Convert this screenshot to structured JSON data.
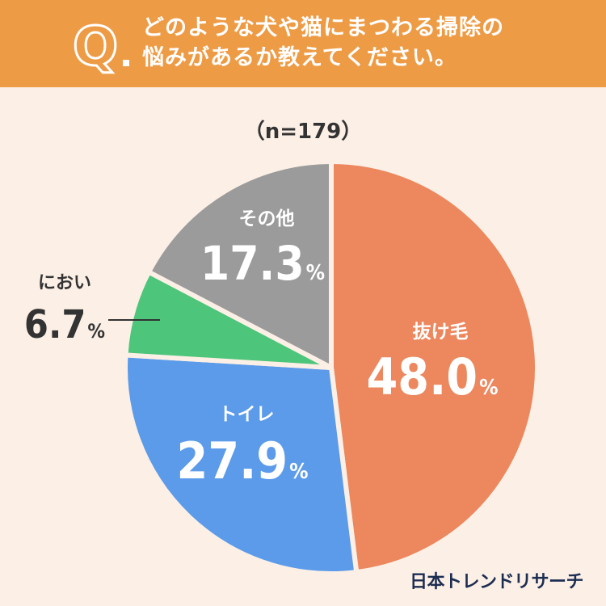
{
  "header": {
    "q_letter": "Q",
    "question_line1": "どのような犬や猫にまつわる掃除の",
    "question_line2": "悩みがあるか教えてください。"
  },
  "sample_size": "（n=179）",
  "brand": "日本トレンドリサーチ",
  "colors": {
    "header_bg": "#EE9B45",
    "background": "#FCF0E6",
    "nuke_ge": "#EC875E",
    "toire": "#5B9BEA",
    "nioi": "#4DC57A",
    "sonota": "#9B9B9B"
  },
  "chart_data": {
    "type": "pie",
    "title": "どのような犬や猫にまつわる掃除の悩みがあるか教えてください。",
    "unit": "%",
    "slices": [
      {
        "label": "抜け毛",
        "value": 48.0,
        "value_text": "48.0",
        "color": "#EC875E"
      },
      {
        "label": "トイレ",
        "value": 27.9,
        "value_text": "27.9",
        "color": "#5B9BEA"
      },
      {
        "label": "におい",
        "value": 6.7,
        "value_text": "6.7",
        "color": "#4DC57A"
      },
      {
        "label": "その他",
        "value": 17.3,
        "value_text": "17.3",
        "color": "#9B9B9B"
      }
    ]
  }
}
